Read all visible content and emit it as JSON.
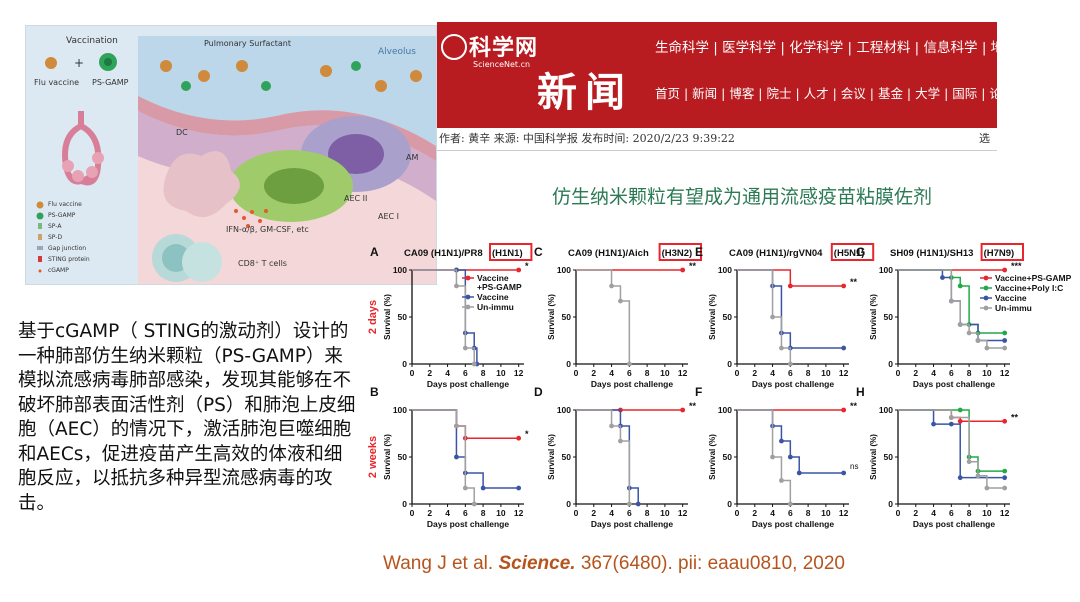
{
  "illustration": {
    "vaccination_label": "Vaccination",
    "flu_vaccine_label": "Flu vaccine",
    "plus": "+",
    "ps_gamp_label": "PS-GAMP",
    "surfactant_label": "Pulmonary Surfactant",
    "alveolus_label": "Alveolus",
    "dc_label": "DC",
    "am_label": "AM",
    "aec2_label": "AEC II",
    "aec1_label": "AEC I",
    "ifn_label": "IFN-α/β, GM-CSF, etc",
    "cd8_label": "CD8⁺ T cells",
    "legend": [
      "Flu vaccine",
      "PS-GAMP",
      "SP-A",
      "SP-D",
      "Gap junction",
      "STING protein",
      "cGAMP"
    ]
  },
  "news": {
    "site_name": "科学网",
    "site_sub": "ScienceNet.cn",
    "section": "新闻",
    "nav_top": "生命科学 | 医学科学 | 化学科学 | 工程材料 | 信息科学 | 地球科",
    "nav_bottom": "首页 | 新闻 | 博客 | 院士 | 人才 | 会议 | 基金 | 大学 | 国际 | 论",
    "meta": "作者: 黄辛  来源: 中国科学报  发布时间: 2020/2/23 9:39:22",
    "meta_right": "选",
    "headline": "仿生纳米颗粒有望成为通用流感疫苗粘膜佐剂"
  },
  "caption": "基于cGAMP（ STING的激动剂）设计的一种肺部仿生纳米颗粒（PS-GAMP）来模拟流感病毒肺部感染，发现其能够在不破坏肺部表面活性剂（PS）和肺泡上皮细胞（AEC）的情况下，激活肺泡巨噬细胞和AECs，促进疫苗产生高效的体液和细胞反应，以抵抗多种异型流感病毒的攻击。",
  "citation": {
    "authors": "Wang J et al. ",
    "journal": "Science.",
    "details": " 367(6480). pii: eaau0810, 2020"
  },
  "row_labels": [
    "2 days",
    "2 weeks"
  ],
  "colors": {
    "vaccine_ps_gamp": "#e8262d",
    "vaccine": "#3a55a4",
    "un_immu": "#a0a0a0",
    "vaccine_poly_ic": "#22a94a",
    "highlight_box": "#e8262d",
    "row_label": "#e8262d"
  },
  "chart_data": [
    {
      "type": "line",
      "panel": "A",
      "title_prefix": "CA09 (H1N1)/PR8",
      "strain": "(H1N1)",
      "xlabel": "Days post challenge",
      "ylabel": "Survival (%)",
      "xticks": [
        0,
        2,
        4,
        6,
        8,
        10,
        12
      ],
      "yticks": [
        0,
        50,
        100
      ],
      "xlim": [
        0,
        12.6
      ],
      "ylim": [
        0,
        100
      ],
      "legend": [
        "Vaccine\n+PS-GAMP",
        "Vaccine",
        "Un-immu"
      ],
      "sig": "*",
      "series": [
        {
          "key": "vaccine_ps_gamp",
          "x": [
            0,
            5,
            12
          ],
          "y": [
            100,
            100,
            100
          ]
        },
        {
          "key": "vaccine",
          "x": [
            0,
            5,
            6,
            7,
            7.3
          ],
          "y": [
            100,
            100,
            33,
            17,
            0
          ]
        },
        {
          "key": "un_immu",
          "x": [
            0,
            5,
            6,
            7
          ],
          "y": [
            100,
            83,
            17,
            0
          ]
        }
      ]
    },
    {
      "type": "line",
      "panel": "C",
      "title_prefix": "CA09 (H1N1)/Aich",
      "strain": "(H3N2)",
      "xlabel": "Days post challenge",
      "ylabel": "Survival (%)",
      "xticks": [
        0,
        2,
        4,
        6,
        8,
        10,
        12
      ],
      "yticks": [
        0,
        50,
        100
      ],
      "xlim": [
        0,
        12.6
      ],
      "ylim": [
        0,
        100
      ],
      "sig": "**",
      "series": [
        {
          "key": "vaccine_ps_gamp",
          "x": [
            0,
            12
          ],
          "y": [
            100,
            100
          ]
        },
        {
          "key": "un_immu",
          "x": [
            0,
            4,
            5,
            6
          ],
          "y": [
            100,
            83,
            67,
            0
          ]
        }
      ]
    },
    {
      "type": "line",
      "panel": "E",
      "title_prefix": "CA09 (H1N1)/rgVN04",
      "strain": "(H5N1)",
      "xlabel": "Days post challenge",
      "ylabel": "Survival (%)",
      "xticks": [
        0,
        2,
        4,
        6,
        8,
        10,
        12
      ],
      "yticks": [
        0,
        50,
        100
      ],
      "xlim": [
        0,
        12.6
      ],
      "ylim": [
        0,
        100
      ],
      "sig": "**",
      "series": [
        {
          "key": "vaccine_ps_gamp",
          "x": [
            0,
            6,
            12
          ],
          "y": [
            100,
            83,
            83
          ]
        },
        {
          "key": "vaccine",
          "x": [
            0,
            4,
            5,
            6,
            12
          ],
          "y": [
            100,
            83,
            33,
            17,
            17
          ]
        },
        {
          "key": "un_immu",
          "x": [
            0,
            4,
            5,
            6
          ],
          "y": [
            100,
            50,
            17,
            0
          ]
        }
      ]
    },
    {
      "type": "line",
      "panel": "G",
      "title_prefix": "SH09 (H1N1)/SH13",
      "strain": "(H7N9)",
      "xlabel": "Days post challenge",
      "ylabel": "Survival (%)",
      "xticks": [
        0,
        2,
        4,
        6,
        8,
        10,
        12
      ],
      "yticks": [
        0,
        50,
        100
      ],
      "xlim": [
        0,
        12.6
      ],
      "ylim": [
        0,
        100
      ],
      "legend": [
        "Vaccine+PS-GAMP",
        "Vaccine+Poly I:C",
        "Vaccine",
        "Un-immu"
      ],
      "sig": "***",
      "series": [
        {
          "key": "vaccine_ps_gamp",
          "x": [
            0,
            12
          ],
          "y": [
            100,
            100
          ]
        },
        {
          "key": "vaccine_poly_ic",
          "x": [
            0,
            6,
            7,
            8,
            9,
            12
          ],
          "y": [
            100,
            92,
            83,
            42,
            33,
            33
          ]
        },
        {
          "key": "vaccine",
          "x": [
            0,
            5,
            6,
            7,
            9,
            12
          ],
          "y": [
            100,
            92,
            67,
            42,
            25,
            25
          ]
        },
        {
          "key": "un_immu",
          "x": [
            0,
            6,
            7,
            8,
            9,
            10,
            12
          ],
          "y": [
            100,
            67,
            42,
            33,
            25,
            17,
            17
          ]
        }
      ]
    },
    {
      "type": "line",
      "panel": "B",
      "xlabel": "Days post challenge",
      "ylabel": "Survival (%)",
      "xticks": [
        0,
        2,
        4,
        6,
        8,
        10,
        12
      ],
      "yticks": [
        0,
        50,
        100
      ],
      "xlim": [
        0,
        12.6
      ],
      "ylim": [
        0,
        100
      ],
      "sig": "*",
      "series": [
        {
          "key": "vaccine_ps_gamp",
          "x": [
            0,
            5,
            6,
            12
          ],
          "y": [
            100,
            83,
            70,
            70
          ]
        },
        {
          "key": "vaccine",
          "x": [
            0,
            5,
            6,
            8,
            12
          ],
          "y": [
            100,
            50,
            33,
            17,
            17
          ]
        },
        {
          "key": "un_immu",
          "x": [
            0,
            5,
            6,
            7
          ],
          "y": [
            100,
            83,
            17,
            0
          ]
        }
      ]
    },
    {
      "type": "line",
      "panel": "D",
      "xlabel": "Days post challenge",
      "ylabel": "Survival (%)",
      "xticks": [
        0,
        2,
        4,
        6,
        8,
        10,
        12
      ],
      "yticks": [
        0,
        50,
        100
      ],
      "xlim": [
        0,
        12.6
      ],
      "ylim": [
        0,
        100
      ],
      "sig": "**",
      "series": [
        {
          "key": "vaccine_ps_gamp",
          "x": [
            0,
            5,
            12
          ],
          "y": [
            100,
            100,
            100
          ]
        },
        {
          "key": "vaccine",
          "x": [
            0,
            5,
            6,
            7
          ],
          "y": [
            100,
            83,
            17,
            0
          ]
        },
        {
          "key": "un_immu",
          "x": [
            0,
            4,
            5,
            6
          ],
          "y": [
            100,
            83,
            67,
            0
          ]
        }
      ]
    },
    {
      "type": "line",
      "panel": "F",
      "xlabel": "Days post challenge",
      "ylabel": "Survival (%)",
      "xticks": [
        0,
        2,
        4,
        6,
        8,
        10,
        12
      ],
      "yticks": [
        0,
        50,
        100
      ],
      "xlim": [
        0,
        12.6
      ],
      "ylim": [
        0,
        100
      ],
      "sig": "**",
      "sig2": "ns",
      "series": [
        {
          "key": "vaccine_ps_gamp",
          "x": [
            0,
            12
          ],
          "y": [
            100,
            100
          ]
        },
        {
          "key": "vaccine",
          "x": [
            0,
            4,
            5,
            6,
            7,
            12
          ],
          "y": [
            100,
            83,
            67,
            50,
            33,
            33
          ]
        },
        {
          "key": "un_immu",
          "x": [
            0,
            4,
            5,
            6
          ],
          "y": [
            100,
            50,
            25,
            0
          ]
        }
      ]
    },
    {
      "type": "line",
      "panel": "H",
      "xlabel": "Days post challenge",
      "ylabel": "Survival (%)",
      "xticks": [
        0,
        2,
        4,
        6,
        8,
        10,
        12
      ],
      "yticks": [
        0,
        50,
        100
      ],
      "xlim": [
        0,
        12.6
      ],
      "ylim": [
        0,
        100
      ],
      "sig": "**",
      "series": [
        {
          "key": "vaccine_ps_gamp",
          "x": [
            0,
            6,
            7,
            12
          ],
          "y": [
            100,
            92,
            88,
            88
          ]
        },
        {
          "key": "vaccine_poly_ic",
          "x": [
            0,
            7,
            8,
            9,
            12
          ],
          "y": [
            100,
            100,
            50,
            35,
            35
          ]
        },
        {
          "key": "vaccine",
          "x": [
            0,
            4,
            6,
            7,
            12
          ],
          "y": [
            100,
            85,
            85,
            28,
            28
          ]
        },
        {
          "key": "un_immu",
          "x": [
            0,
            6,
            8,
            9,
            10,
            12
          ],
          "y": [
            100,
            92,
            45,
            30,
            17,
            17
          ]
        }
      ]
    }
  ]
}
